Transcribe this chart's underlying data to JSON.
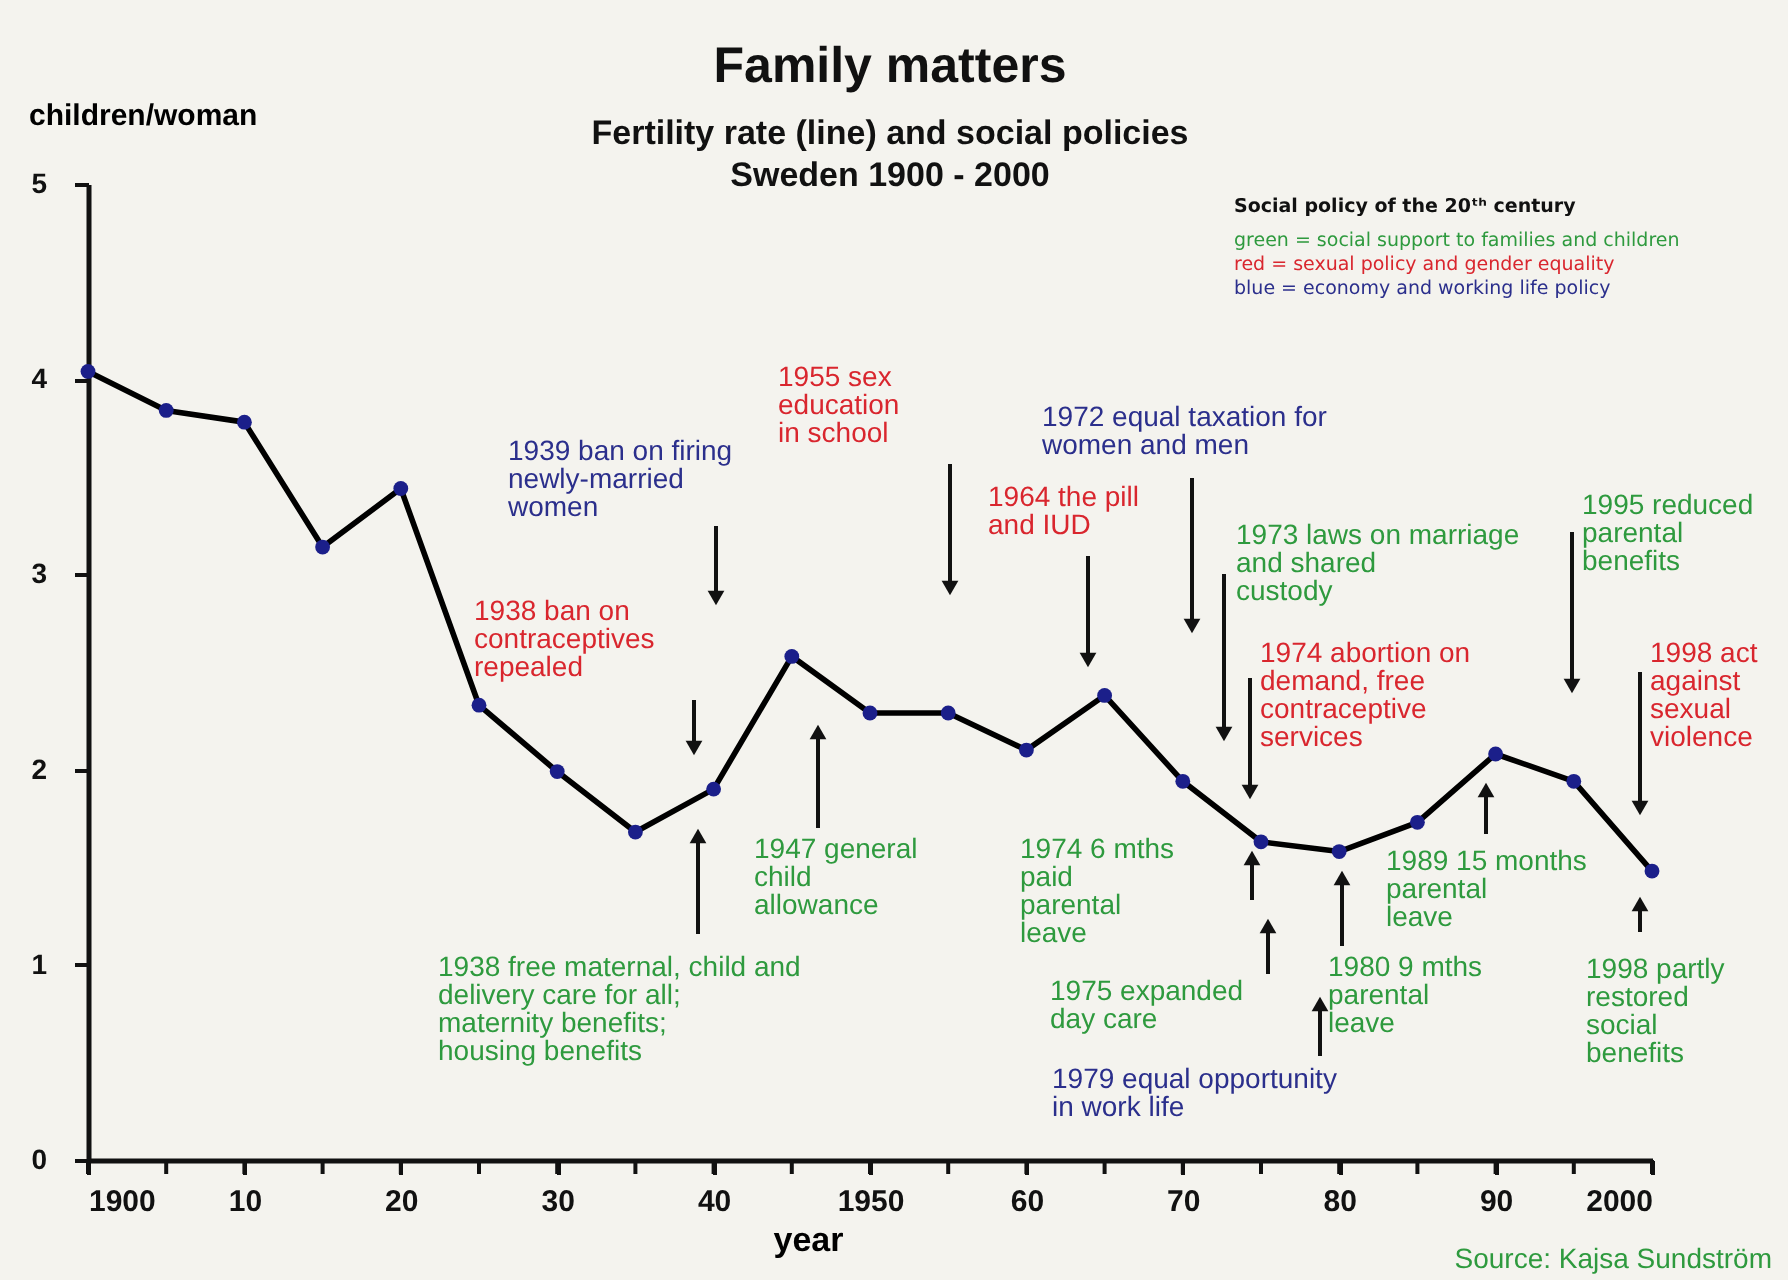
{
  "chart_data": {
    "type": "line",
    "title": "Family matters",
    "subtitle": [
      "Fertility rate (line) and social policies",
      "Sweden 1900 - 2000"
    ],
    "xlabel": "year",
    "ylabel": "children/woman",
    "x": [
      1900,
      1905,
      1910,
      1915,
      1920,
      1925,
      1930,
      1935,
      1940,
      1945,
      1950,
      1955,
      1960,
      1965,
      1970,
      1975,
      1980,
      1985,
      1990,
      1995,
      2000
    ],
    "series": [
      {
        "color": "#000000",
        "values": [
          4.04,
          3.84,
          3.78,
          3.14,
          3.44,
          2.33,
          1.99,
          1.68,
          1.9,
          2.58,
          2.29,
          2.29,
          2.1,
          2.38,
          1.94,
          1.63,
          1.58,
          1.73,
          2.08,
          1.94,
          1.48
        ]
      },
      {
        "type": "scatter",
        "color": "#1b1f8a",
        "values": [
          4.04,
          3.84,
          3.78,
          3.14,
          3.44,
          2.33,
          1.99,
          1.68,
          1.9,
          2.58,
          2.29,
          2.29,
          2.1,
          2.38,
          1.94,
          1.63,
          1.58,
          1.73,
          2.08,
          1.94,
          1.48
        ]
      }
    ],
    "line_style": "solid",
    "grid": false,
    "xlim": [
      1900,
      2000
    ],
    "ylim": [
      0,
      5
    ],
    "xticks": [
      1900,
      {
        "value": 1905,
        "label": null
      },
      {
        "value": 1910,
        "label": "10"
      },
      {
        "value": 1915,
        "label": null
      },
      {
        "value": 1920,
        "label": "20"
      },
      {
        "value": 1925,
        "label": null
      },
      {
        "value": 1930,
        "label": "30"
      },
      {
        "value": 1935,
        "label": null
      },
      {
        "value": 1940,
        "label": "40"
      },
      {
        "value": 1945,
        "label": null
      },
      1950,
      {
        "value": 1955,
        "label": null
      },
      {
        "value": 1960,
        "label": "60"
      },
      {
        "value": 1965,
        "label": null
      },
      {
        "value": 1970,
        "label": "70"
      },
      {
        "value": 1975,
        "label": null
      },
      {
        "value": 1980,
        "label": "80"
      },
      {
        "value": 1985,
        "label": null
      },
      {
        "value": 1990,
        "label": "90"
      },
      {
        "value": 1995,
        "label": null
      },
      2000
    ],
    "yticks": [
      0,
      1,
      2,
      3,
      4,
      5
    ],
    "annotations": [
      "Social policy of the 20ᵗʰ century",
      "green = social support to families and children",
      "red     = sexual policy and gender equality",
      "blue   = economy and working life policy",
      "1939 ban on firing\nnewly-married\nwomen",
      "1938 ban on\ncontraceptives\nrepealed",
      "1938 free maternal, child and\ndelivery care for all;\nmaternity benefits;\nhousing benefits",
      "1947 general\nchild\nallowance",
      "1955 sex\neducation\nin school",
      "1972 equal taxation for\nwomen and men",
      "1964 the pill\nand IUD",
      "1973 laws on marriage\nand shared\ncustody",
      "1974 abortion on\ndemand, free\ncontraceptive\nservices",
      "1974 6 mths\npaid\nparental\nleave",
      "1975 expanded\nday care",
      "1979 equal opportunity\nin work life",
      "1980 9 mths\nparental\nleave",
      "1989 15 months\nparental\nleave",
      "1995 reduced\nparental\nbenefits",
      "1998 act\nagainst\nsexual\nviolence",
      "1998 partly\nrestored\nsocial\nbenefits",
      "Source: Kajsa Sundström"
    ]
  }
}
